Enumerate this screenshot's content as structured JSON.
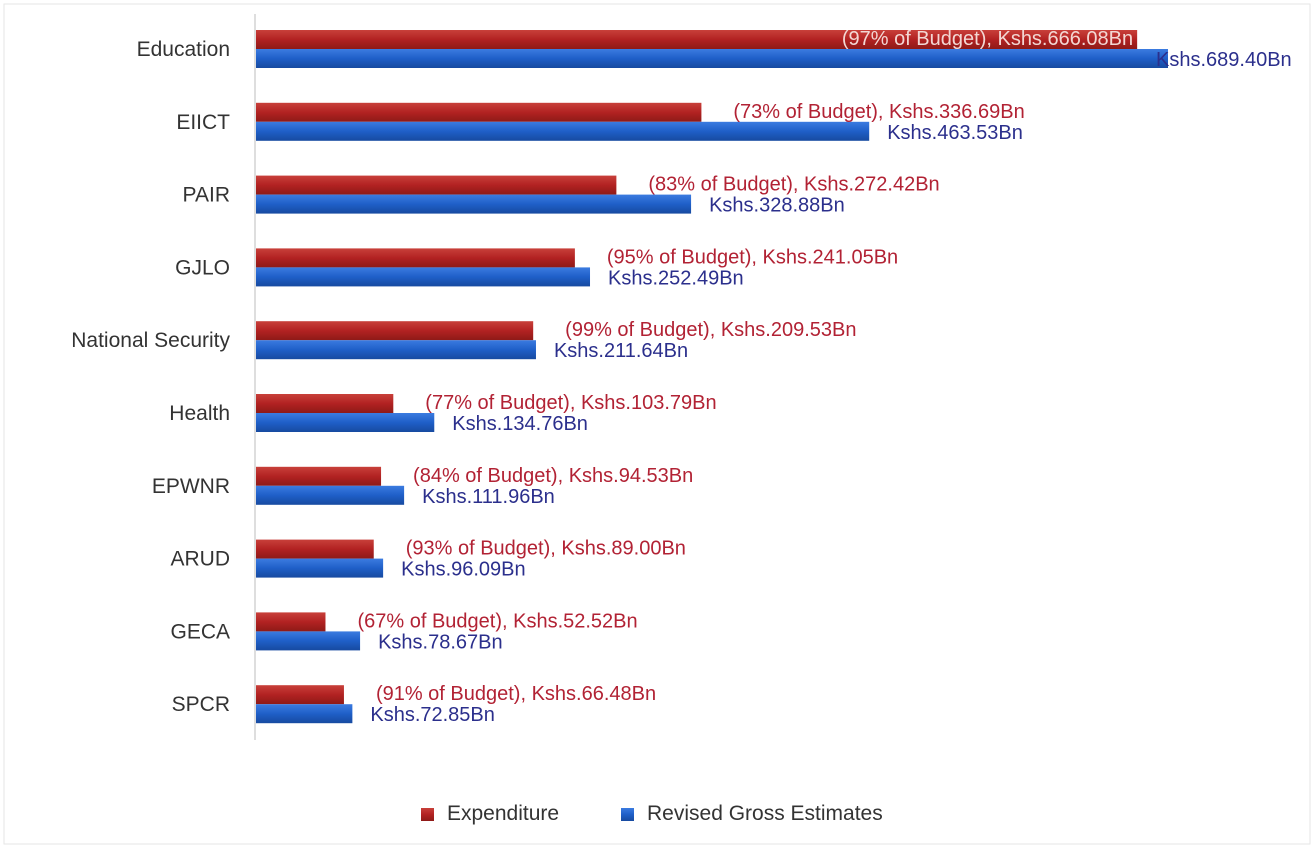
{
  "chart_data": {
    "type": "bar",
    "orientation": "horizontal",
    "categories": [
      "Education",
      "EIICT",
      "PAIR",
      "GJLO",
      "National Security",
      "Health",
      "EPWNR",
      "ARUD",
      "GECA",
      "SPCR"
    ],
    "series": [
      {
        "name": "Expenditure",
        "color": "#B22222",
        "values": [
          666.08,
          336.69,
          272.42,
          241.05,
          209.53,
          103.79,
          94.53,
          89.0,
          52.52,
          66.48
        ],
        "labels": [
          "(97% of Budget), Kshs.666.08Bn",
          "(73% of Budget), Kshs.336.69Bn",
          "(83% of Budget), Kshs.272.42Bn",
          "(95% of Budget), Kshs.241.05Bn",
          "(99% of Budget), Kshs.209.53Bn",
          "(77% of Budget), Kshs.103.79Bn",
          "(84% of Budget), Kshs.94.53Bn",
          "(93% of Budget), Kshs.89.00Bn",
          "(67% of Budget), Kshs.52.52Bn",
          "(91% of Budget), Kshs.66.48Bn"
        ]
      },
      {
        "name": "Revised Gross Estimates",
        "color": "#1F5FC8",
        "values": [
          689.4,
          463.53,
          328.88,
          252.49,
          211.64,
          134.76,
          111.96,
          96.09,
          78.67,
          72.85
        ],
        "labels": [
          "Kshs.689.40Bn",
          "Kshs.463.53Bn",
          "Kshs.328.88Bn",
          "Kshs.252.49Bn",
          "Kshs.211.64Bn",
          "Kshs.134.76Bn",
          "Kshs.111.96Bn",
          "Kshs.96.09Bn",
          "Kshs.78.67Bn",
          "Kshs.72.85Bn"
        ]
      }
    ],
    "label_colors": {
      "expenditure": "#B22234",
      "revised": "#2B2F8C"
    },
    "xlim": [
      0,
      700
    ],
    "grid": false,
    "legend": "bottom"
  }
}
